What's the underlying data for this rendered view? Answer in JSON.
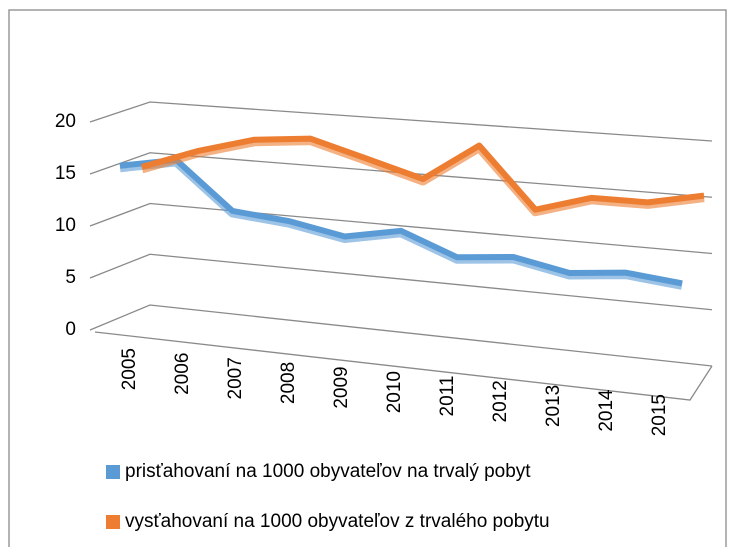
{
  "chart_data": {
    "type": "line3d",
    "categories": [
      "2005",
      "2006",
      "2007",
      "2008",
      "2009",
      "2010",
      "2011",
      "2012",
      "2013",
      "2014",
      "2015"
    ],
    "series": [
      {
        "name": "prisťahovaní na 1000 obyvateľov na trvalý pobyt",
        "color": "#5b9bd5",
        "values": [
          15,
          16,
          11.5,
          11,
          10,
          11,
          9,
          9.5,
          8.5,
          9,
          8.5
        ]
      },
      {
        "name": "vysťahovaní na 1000 obyvateľov z trvalého pobytu",
        "color": "#ed7d31",
        "values": [
          14,
          16,
          17.5,
          18,
          16.5,
          15,
          18.5,
          13,
          14.5,
          14.5,
          15.5
        ]
      }
    ],
    "ylim": [
      0,
      20
    ],
    "yticks": [
      0,
      5,
      10,
      15,
      20
    ],
    "grid": true
  }
}
